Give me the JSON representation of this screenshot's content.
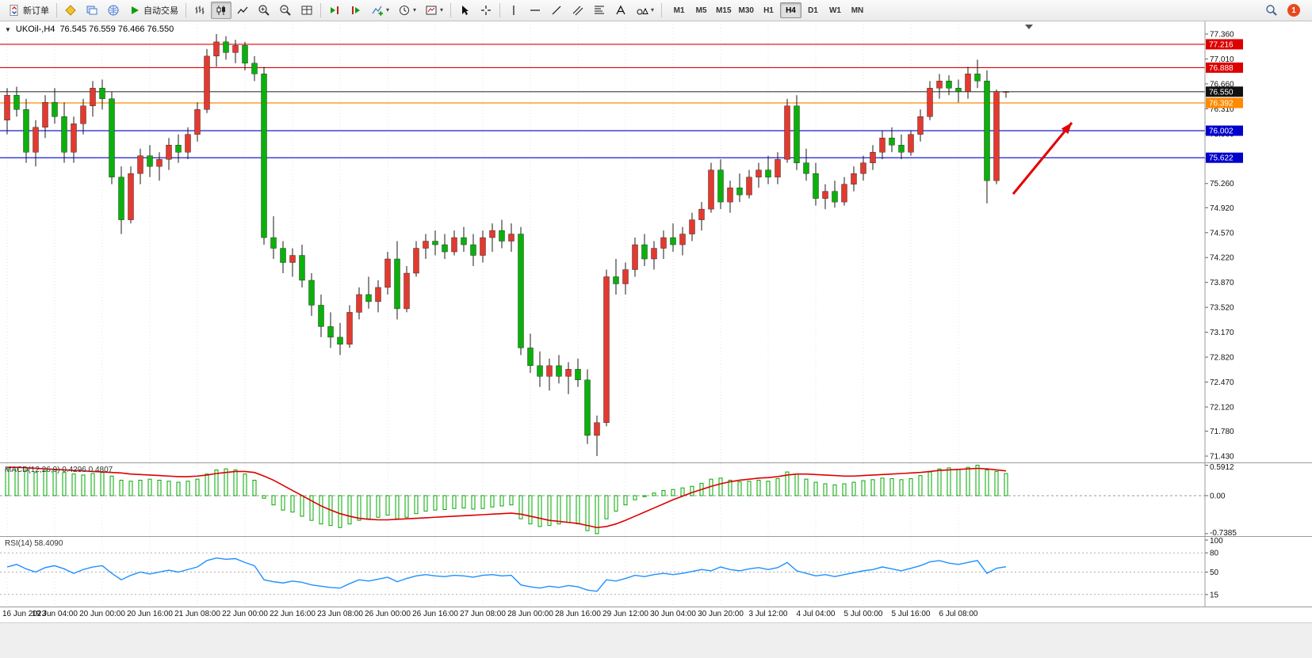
{
  "icons": {
    "caret": "▾",
    "collapse": "▼",
    "marker": "▼"
  },
  "toolbar": {
    "new_order_label": "新订单",
    "autotrading_label": "自动交易",
    "timeframes": [
      "M1",
      "M5",
      "M15",
      "M30",
      "H1",
      "H4",
      "D1",
      "W1",
      "MN"
    ],
    "active_timeframe": "H4",
    "badge_count": "1"
  },
  "colors": {
    "up": "#e23a30",
    "down": "#0cb00c",
    "wick": "#1a1a1a",
    "macd_hist": "#00a800",
    "macd_signal": "#dd0000",
    "rsi": "#1e90ff",
    "grid": "#e4e4e4",
    "arrow": "#e40000",
    "axis_text": "#111111"
  },
  "chart_data": {
    "type": "candlestick",
    "header": {
      "symbol": "UKOil-,H4",
      "ohlc": "76.545 76.559 76.466 76.550"
    },
    "price_axis_ticks": [
      "77.360",
      "77.010",
      "76.660",
      "76.310",
      "75.960",
      "75.610",
      "75.260",
      "74.920",
      "74.570",
      "74.220",
      "73.870",
      "73.520",
      "73.170",
      "72.820",
      "72.470",
      "72.120",
      "71.780",
      "71.430"
    ],
    "hlines": [
      {
        "price": 77.216,
        "color": "#dd0000",
        "label": "77.216"
      },
      {
        "price": 76.888,
        "color": "#dd0000",
        "label": "76.888"
      },
      {
        "price": 76.55,
        "color": "#3a3a3a",
        "label": "76.550",
        "label_bg": "#111111"
      },
      {
        "price": 76.392,
        "color": "#ff8a00",
        "label": "76.392"
      },
      {
        "price": 76.002,
        "color": "#0000cc",
        "label": "76.002"
      },
      {
        "price": 75.622,
        "color": "#0000cc",
        "label": "75.622"
      }
    ],
    "time_labels": [
      "16 Jun 2023",
      "19 Jun 04:00",
      "20 Jun 00:00",
      "20 Jun 16:00",
      "21 Jun 08:00",
      "22 Jun 00:00",
      "22 Jun 16:00",
      "23 Jun 08:00",
      "26 Jun 00:00",
      "26 Jun 16:00",
      "27 Jun 08:00",
      "28 Jun 00:00",
      "28 Jun 16:00",
      "29 Jun 12:00",
      "30 Jun 04:00",
      "30 Jun 20:00",
      "3 Jul 12:00",
      "4 Jul 04:00",
      "5 Jul 00:00",
      "5 Jul 16:00",
      "6 Jul 08:00"
    ],
    "candles": [
      [
        76.15,
        76.6,
        75.95,
        76.5
      ],
      [
        76.5,
        76.62,
        76.2,
        76.3
      ],
      [
        76.3,
        76.45,
        75.55,
        75.7
      ],
      [
        75.7,
        76.15,
        75.5,
        76.05
      ],
      [
        76.05,
        76.5,
        75.9,
        76.4
      ],
      [
        76.4,
        76.6,
        76.1,
        76.2
      ],
      [
        76.2,
        76.4,
        75.55,
        75.7
      ],
      [
        75.7,
        76.2,
        75.55,
        76.1
      ],
      [
        76.1,
        76.45,
        75.95,
        76.35
      ],
      [
        76.35,
        76.7,
        76.2,
        76.6
      ],
      [
        76.6,
        76.72,
        76.3,
        76.45
      ],
      [
        76.45,
        76.55,
        75.25,
        75.35
      ],
      [
        75.35,
        75.5,
        74.55,
        74.75
      ],
      [
        74.75,
        75.5,
        74.7,
        75.4
      ],
      [
        75.4,
        75.75,
        75.25,
        75.65
      ],
      [
        75.65,
        75.8,
        75.35,
        75.5
      ],
      [
        75.5,
        75.7,
        75.3,
        75.6
      ],
      [
        75.6,
        75.9,
        75.45,
        75.8
      ],
      [
        75.8,
        75.95,
        75.55,
        75.7
      ],
      [
        75.7,
        76.05,
        75.6,
        75.95
      ],
      [
        75.95,
        76.4,
        75.85,
        76.3
      ],
      [
        76.3,
        77.15,
        76.25,
        77.05
      ],
      [
        77.05,
        77.36,
        76.9,
        77.25
      ],
      [
        77.25,
        77.33,
        77.0,
        77.1
      ],
      [
        77.1,
        77.28,
        76.95,
        77.2
      ],
      [
        77.2,
        77.25,
        76.85,
        76.95
      ],
      [
        76.95,
        77.05,
        76.7,
        76.8
      ],
      [
        76.8,
        76.9,
        74.4,
        74.5
      ],
      [
        74.5,
        74.8,
        74.2,
        74.35
      ],
      [
        74.35,
        74.45,
        74.0,
        74.15
      ],
      [
        74.15,
        74.35,
        73.95,
        74.25
      ],
      [
        74.25,
        74.4,
        73.8,
        73.9
      ],
      [
        73.9,
        74.0,
        73.4,
        73.55
      ],
      [
        73.55,
        73.7,
        73.1,
        73.25
      ],
      [
        73.25,
        73.45,
        72.95,
        73.1
      ],
      [
        73.1,
        73.3,
        72.85,
        73.0
      ],
      [
        73.0,
        73.55,
        72.95,
        73.45
      ],
      [
        73.45,
        73.8,
        73.35,
        73.7
      ],
      [
        73.7,
        73.95,
        73.5,
        73.6
      ],
      [
        73.6,
        73.9,
        73.45,
        73.8
      ],
      [
        73.8,
        74.3,
        73.7,
        74.2
      ],
      [
        74.2,
        74.45,
        73.35,
        73.5
      ],
      [
        73.5,
        74.1,
        73.45,
        74.0
      ],
      [
        74.0,
        74.45,
        73.95,
        74.35
      ],
      [
        74.35,
        74.55,
        74.2,
        74.45
      ],
      [
        74.45,
        74.6,
        74.25,
        74.4
      ],
      [
        74.4,
        74.55,
        74.2,
        74.3
      ],
      [
        74.3,
        74.6,
        74.25,
        74.5
      ],
      [
        74.5,
        74.65,
        74.3,
        74.4
      ],
      [
        74.4,
        74.55,
        74.1,
        74.25
      ],
      [
        74.25,
        74.6,
        74.15,
        74.5
      ],
      [
        74.5,
        74.7,
        74.3,
        74.6
      ],
      [
        74.6,
        74.75,
        74.35,
        74.45
      ],
      [
        74.45,
        74.7,
        74.3,
        74.55
      ],
      [
        74.55,
        74.65,
        72.85,
        72.95
      ],
      [
        72.95,
        73.15,
        72.6,
        72.7
      ],
      [
        72.7,
        72.9,
        72.4,
        72.55
      ],
      [
        72.55,
        72.8,
        72.35,
        72.7
      ],
      [
        72.7,
        72.85,
        72.45,
        72.55
      ],
      [
        72.55,
        72.75,
        72.3,
        72.65
      ],
      [
        72.65,
        72.8,
        72.4,
        72.5
      ],
      [
        72.5,
        72.65,
        71.6,
        71.72
      ],
      [
        71.72,
        72.0,
        71.43,
        71.9
      ],
      [
        71.9,
        74.05,
        71.85,
        73.95
      ],
      [
        73.95,
        74.2,
        73.7,
        73.85
      ],
      [
        73.85,
        74.15,
        73.7,
        74.05
      ],
      [
        74.05,
        74.5,
        73.95,
        74.4
      ],
      [
        74.4,
        74.55,
        74.1,
        74.2
      ],
      [
        74.2,
        74.45,
        74.05,
        74.35
      ],
      [
        74.35,
        74.6,
        74.2,
        74.5
      ],
      [
        74.5,
        74.7,
        74.3,
        74.4
      ],
      [
        74.4,
        74.65,
        74.25,
        74.55
      ],
      [
        74.55,
        74.85,
        74.45,
        74.75
      ],
      [
        74.75,
        75.0,
        74.6,
        74.9
      ],
      [
        74.9,
        75.55,
        74.85,
        75.45
      ],
      [
        75.45,
        75.6,
        74.9,
        75.0
      ],
      [
        75.0,
        75.3,
        74.85,
        75.2
      ],
      [
        75.2,
        75.4,
        75.0,
        75.1
      ],
      [
        75.1,
        75.45,
        75.05,
        75.35
      ],
      [
        75.35,
        75.55,
        75.2,
        75.45
      ],
      [
        75.45,
        75.65,
        75.25,
        75.35
      ],
      [
        75.35,
        75.7,
        75.25,
        75.6
      ],
      [
        75.6,
        76.45,
        75.55,
        76.35
      ],
      [
        76.35,
        76.5,
        75.45,
        75.55
      ],
      [
        75.55,
        75.75,
        75.3,
        75.4
      ],
      [
        75.4,
        75.55,
        74.95,
        75.05
      ],
      [
        75.05,
        75.25,
        74.9,
        75.15
      ],
      [
        75.15,
        75.3,
        74.92,
        75.0
      ],
      [
        75.0,
        75.35,
        74.95,
        75.25
      ],
      [
        75.25,
        75.5,
        75.15,
        75.4
      ],
      [
        75.4,
        75.65,
        75.3,
        75.55
      ],
      [
        75.55,
        75.8,
        75.45,
        75.7
      ],
      [
        75.7,
        76.0,
        75.6,
        75.9
      ],
      [
        75.9,
        76.05,
        75.7,
        75.8
      ],
      [
        75.8,
        75.95,
        75.6,
        75.7
      ],
      [
        75.7,
        76.0,
        75.65,
        75.95
      ],
      [
        75.95,
        76.3,
        75.85,
        76.2
      ],
      [
        76.2,
        76.7,
        76.15,
        76.6
      ],
      [
        76.6,
        76.8,
        76.45,
        76.7
      ],
      [
        76.7,
        76.78,
        76.5,
        76.6
      ],
      [
        76.6,
        76.72,
        76.4,
        76.55
      ],
      [
        76.55,
        76.9,
        76.45,
        76.8
      ],
      [
        76.8,
        77.0,
        76.6,
        76.7
      ],
      [
        76.7,
        76.85,
        74.98,
        75.3
      ],
      [
        75.3,
        76.58,
        75.25,
        76.55
      ],
      [
        76.545,
        76.559,
        76.466,
        76.55
      ]
    ],
    "macd": {
      "label": "MACD(12,26,9) 0.4296 0.4807",
      "scale": [
        {
          "v": 0.5912,
          "label": "0.5912"
        },
        {
          "v": 0,
          "label": "0.00"
        },
        {
          "v": -0.7385,
          "label": "-0.7385"
        }
      ],
      "values": [
        0.52,
        0.55,
        0.5,
        0.45,
        0.48,
        0.5,
        0.45,
        0.42,
        0.4,
        0.43,
        0.45,
        0.38,
        0.3,
        0.28,
        0.3,
        0.32,
        0.3,
        0.28,
        0.26,
        0.28,
        0.32,
        0.42,
        0.5,
        0.52,
        0.5,
        0.42,
        0.3,
        -0.05,
        -0.18,
        -0.28,
        -0.32,
        -0.4,
        -0.48,
        -0.55,
        -0.58,
        -0.62,
        -0.55,
        -0.48,
        -0.45,
        -0.42,
        -0.38,
        -0.45,
        -0.42,
        -0.35,
        -0.3,
        -0.28,
        -0.27,
        -0.25,
        -0.24,
        -0.26,
        -0.25,
        -0.22,
        -0.2,
        -0.18,
        -0.45,
        -0.55,
        -0.6,
        -0.58,
        -0.55,
        -0.52,
        -0.55,
        -0.68,
        -0.7385,
        -0.45,
        -0.3,
        -0.18,
        -0.08,
        -0.02,
        0.05,
        0.1,
        0.12,
        0.15,
        0.18,
        0.24,
        0.32,
        0.34,
        0.3,
        0.27,
        0.28,
        0.3,
        0.28,
        0.33,
        0.46,
        0.42,
        0.32,
        0.26,
        0.23,
        0.21,
        0.23,
        0.26,
        0.29,
        0.31,
        0.34,
        0.33,
        0.31,
        0.33,
        0.39,
        0.46,
        0.52,
        0.54,
        0.51,
        0.55,
        0.5912,
        0.5,
        0.47,
        0.4296
      ],
      "signal": [
        0.55,
        0.55,
        0.54,
        0.53,
        0.52,
        0.51,
        0.5,
        0.49,
        0.48,
        0.47,
        0.46,
        0.45,
        0.44,
        0.42,
        0.41,
        0.4,
        0.39,
        0.38,
        0.37,
        0.37,
        0.38,
        0.4,
        0.43,
        0.45,
        0.47,
        0.47,
        0.45,
        0.38,
        0.3,
        0.2,
        0.1,
        0.0,
        -0.1,
        -0.2,
        -0.28,
        -0.35,
        -0.4,
        -0.44,
        -0.46,
        -0.47,
        -0.47,
        -0.46,
        -0.45,
        -0.44,
        -0.43,
        -0.42,
        -0.41,
        -0.4,
        -0.39,
        -0.38,
        -0.37,
        -0.36,
        -0.35,
        -0.34,
        -0.36,
        -0.4,
        -0.44,
        -0.48,
        -0.5,
        -0.52,
        -0.54,
        -0.58,
        -0.62,
        -0.6,
        -0.55,
        -0.48,
        -0.4,
        -0.32,
        -0.24,
        -0.16,
        -0.08,
        -0.01,
        0.06,
        0.12,
        0.18,
        0.23,
        0.27,
        0.3,
        0.32,
        0.34,
        0.35,
        0.37,
        0.4,
        0.42,
        0.42,
        0.41,
        0.4,
        0.39,
        0.38,
        0.38,
        0.39,
        0.4,
        0.41,
        0.42,
        0.43,
        0.44,
        0.45,
        0.47,
        0.49,
        0.5,
        0.51,
        0.52,
        0.53,
        0.52,
        0.5,
        0.4807
      ]
    },
    "rsi": {
      "label": "RSI(14) 58.4090",
      "scale": [
        {
          "v": 100,
          "label": "100"
        },
        {
          "v": 80,
          "label": "80"
        },
        {
          "v": 50,
          "label": "50"
        },
        {
          "v": 15,
          "label": "15"
        }
      ],
      "levels": [
        80,
        50,
        15
      ],
      "values": [
        58,
        62,
        55,
        50,
        57,
        60,
        55,
        48,
        54,
        58,
        60,
        48,
        38,
        45,
        50,
        47,
        50,
        53,
        50,
        54,
        58,
        68,
        72,
        70,
        71,
        65,
        60,
        38,
        35,
        33,
        36,
        34,
        30,
        28,
        26,
        25,
        32,
        38,
        36,
        39,
        42,
        35,
        40,
        44,
        46,
        44,
        43,
        45,
        44,
        42,
        45,
        46,
        44,
        45,
        30,
        27,
        25,
        28,
        26,
        29,
        27,
        22,
        20,
        38,
        36,
        40,
        45,
        43,
        46,
        48,
        46,
        48,
        51,
        54,
        52,
        58,
        54,
        52,
        55,
        57,
        54,
        57,
        65,
        52,
        48,
        44,
        46,
        43,
        46,
        49,
        52,
        54,
        58,
        55,
        52,
        56,
        60,
        66,
        68,
        64,
        62,
        65,
        68,
        48,
        56,
        58.41
      ]
    },
    "arrow": {
      "from": [
        1278,
        245
      ],
      "to": [
        1352,
        155
      ]
    }
  }
}
